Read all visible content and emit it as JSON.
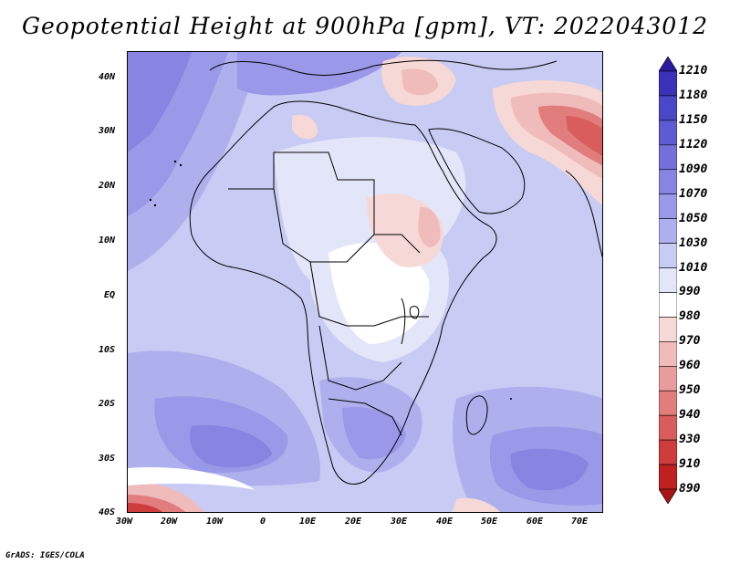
{
  "title": "Geopotential Height at 900hPa [gpm], VT: 2022043012",
  "credit": "GrADS: IGES/COLA",
  "lat_labels": [
    "40N",
    "30N",
    "20N",
    "10N",
    "EQ",
    "10S",
    "20S",
    "30S",
    "40S"
  ],
  "lon_labels": [
    "30W",
    "20W",
    "10W",
    "0",
    "10E",
    "20E",
    "30E",
    "40E",
    "50E",
    "60E",
    "70E"
  ],
  "colorbar": {
    "levels": [
      "1210",
      "1180",
      "1150",
      "1120",
      "1090",
      "1070",
      "1050",
      "1030",
      "1010",
      "990",
      "980",
      "970",
      "960",
      "950",
      "940",
      "930",
      "910",
      "890"
    ],
    "colors": [
      "#2a1aa0",
      "#3a32b8",
      "#4a48c8",
      "#5e5cd4",
      "#7370dc",
      "#8784e2",
      "#9a98e8",
      "#aeb0ee",
      "#c8cbf3",
      "#e3e5f8",
      "#ffffff",
      "#f6d8d6",
      "#efbcbb",
      "#e99c9c",
      "#e27d7d",
      "#da5d5d",
      "#cf3c3c",
      "#c02020",
      "#a81414"
    ]
  }
}
